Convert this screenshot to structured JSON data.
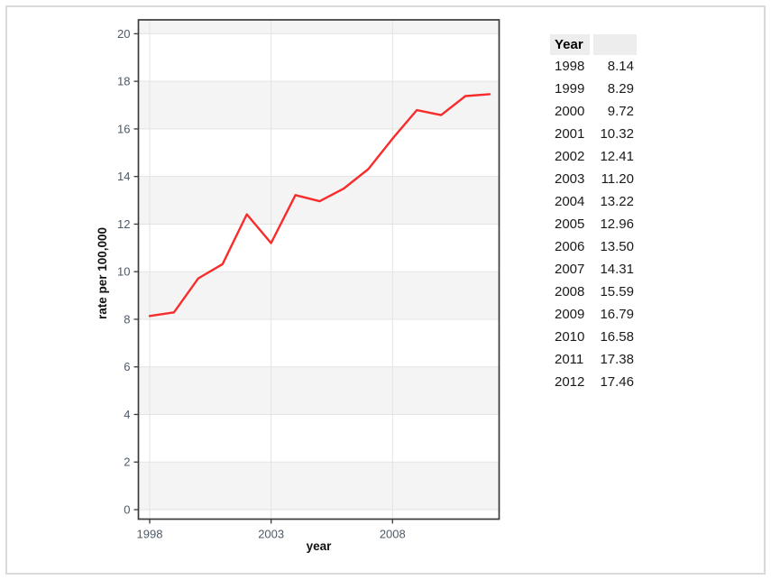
{
  "chart_data": {
    "type": "line",
    "title": "",
    "xlabel": "year",
    "ylabel": "rate per 100,000",
    "x": [
      1998,
      1999,
      2000,
      2001,
      2002,
      2003,
      2004,
      2005,
      2006,
      2007,
      2008,
      2009,
      2010,
      2011,
      2012
    ],
    "series": [
      {
        "name": "rate per 100,000",
        "values": [
          8.14,
          8.29,
          9.72,
          10.32,
          12.41,
          11.2,
          13.22,
          12.96,
          13.5,
          14.31,
          15.59,
          16.79,
          16.58,
          17.38,
          17.46
        ]
      }
    ],
    "ylim": [
      0,
      20
    ],
    "yticks": [
      0,
      2,
      4,
      6,
      8,
      10,
      12,
      14,
      16,
      18,
      20
    ],
    "xticks": [
      1998,
      2003,
      2008
    ],
    "grid": true,
    "legend": "none",
    "line_color": "#f92c2c",
    "panel_band_color": "#f4f4f4",
    "gridline_color": "#e3e3e3",
    "frame_color": "#3b3b3b",
    "tick_label_color": "#4e5a66"
  },
  "table": {
    "header": {
      "year": "Year",
      "value": ""
    },
    "rows": [
      [
        "1998",
        "8.14"
      ],
      [
        "1999",
        "8.29"
      ],
      [
        "2000",
        "9.72"
      ],
      [
        "2001",
        "10.32"
      ],
      [
        "2002",
        "12.41"
      ],
      [
        "2003",
        "11.20"
      ],
      [
        "2004",
        "13.22"
      ],
      [
        "2005",
        "12.96"
      ],
      [
        "2006",
        "13.50"
      ],
      [
        "2007",
        "14.31"
      ],
      [
        "2008",
        "15.59"
      ],
      [
        "2009",
        "16.79"
      ],
      [
        "2010",
        "16.58"
      ],
      [
        "2011",
        "17.38"
      ],
      [
        "2012",
        "17.46"
      ]
    ]
  }
}
